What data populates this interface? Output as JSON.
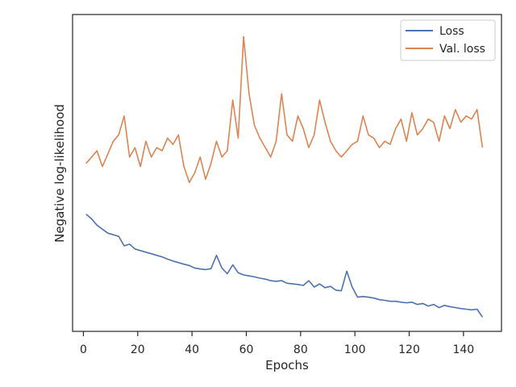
{
  "chart_data": {
    "type": "line",
    "title": "",
    "xlabel": "Epochs",
    "ylabel": "Negative log-likelihood",
    "xlim": [
      -4,
      154
    ],
    "ylim": [
      0,
      1
    ],
    "x_ticks": [
      0,
      20,
      40,
      60,
      80,
      100,
      120,
      140
    ],
    "y_ticks_labeled": false,
    "grid": false,
    "legend": {
      "placement": "upper right",
      "entries": [
        "Loss",
        "Val. loss"
      ]
    },
    "series": [
      {
        "name": "Loss",
        "color": "#4c72b0",
        "x": [
          1,
          3,
          5,
          9,
          13,
          15,
          17,
          19,
          21,
          23,
          25,
          27,
          29,
          31,
          33,
          35,
          37,
          39,
          41,
          43,
          45,
          47,
          49,
          51,
          53,
          55,
          57,
          59,
          61,
          63,
          65,
          67,
          69,
          71,
          73,
          75,
          77,
          79,
          81,
          83,
          85,
          87,
          89,
          91,
          93,
          95,
          97,
          99,
          101,
          103,
          105,
          107,
          109,
          111,
          113,
          115,
          117,
          119,
          121,
          123,
          125,
          127,
          129,
          131,
          133,
          135,
          137,
          139,
          141,
          143,
          145,
          147
        ],
        "values": [
          0.37,
          0.355,
          0.335,
          0.31,
          0.3,
          0.27,
          0.275,
          0.26,
          0.255,
          0.25,
          0.245,
          0.24,
          0.235,
          0.228,
          0.222,
          0.217,
          0.212,
          0.208,
          0.2,
          0.197,
          0.195,
          0.198,
          0.24,
          0.2,
          0.182,
          0.21,
          0.185,
          0.178,
          0.175,
          0.172,
          0.168,
          0.165,
          0.16,
          0.158,
          0.16,
          0.152,
          0.15,
          0.148,
          0.145,
          0.16,
          0.14,
          0.15,
          0.138,
          0.142,
          0.13,
          0.128,
          0.19,
          0.14,
          0.108,
          0.11,
          0.108,
          0.105,
          0.1,
          0.098,
          0.095,
          0.095,
          0.092,
          0.09,
          0.092,
          0.085,
          0.088,
          0.08,
          0.085,
          0.075,
          0.082,
          0.078,
          0.075,
          0.072,
          0.07,
          0.068,
          0.07,
          0.045
        ]
      },
      {
        "name": "Val. loss",
        "color": "#dd8452",
        "x": [
          1,
          3,
          5,
          7,
          9,
          11,
          13,
          15,
          17,
          19,
          21,
          23,
          25,
          27,
          29,
          31,
          33,
          35,
          37,
          39,
          41,
          43,
          45,
          47,
          49,
          51,
          53,
          55,
          57,
          59,
          61,
          63,
          65,
          67,
          69,
          71,
          73,
          75,
          77,
          79,
          81,
          83,
          85,
          87,
          89,
          91,
          93,
          95,
          97,
          99,
          101,
          103,
          105,
          107,
          109,
          111,
          113,
          115,
          117,
          119,
          121,
          123,
          125,
          127,
          129,
          131,
          133,
          135,
          137,
          139,
          141,
          143,
          145,
          147
        ],
        "values": [
          0.53,
          0.55,
          0.57,
          0.52,
          0.56,
          0.6,
          0.62,
          0.68,
          0.55,
          0.58,
          0.52,
          0.6,
          0.55,
          0.58,
          0.57,
          0.61,
          0.59,
          0.62,
          0.52,
          0.47,
          0.5,
          0.55,
          0.48,
          0.53,
          0.6,
          0.55,
          0.57,
          0.73,
          0.61,
          0.93,
          0.75,
          0.65,
          0.61,
          0.58,
          0.55,
          0.6,
          0.75,
          0.62,
          0.6,
          0.68,
          0.64,
          0.58,
          0.62,
          0.73,
          0.66,
          0.6,
          0.57,
          0.55,
          0.57,
          0.59,
          0.6,
          0.68,
          0.62,
          0.61,
          0.58,
          0.6,
          0.59,
          0.64,
          0.67,
          0.6,
          0.69,
          0.62,
          0.64,
          0.67,
          0.66,
          0.6,
          0.68,
          0.64,
          0.7,
          0.66,
          0.68,
          0.67,
          0.7,
          0.58
        ]
      }
    ]
  }
}
